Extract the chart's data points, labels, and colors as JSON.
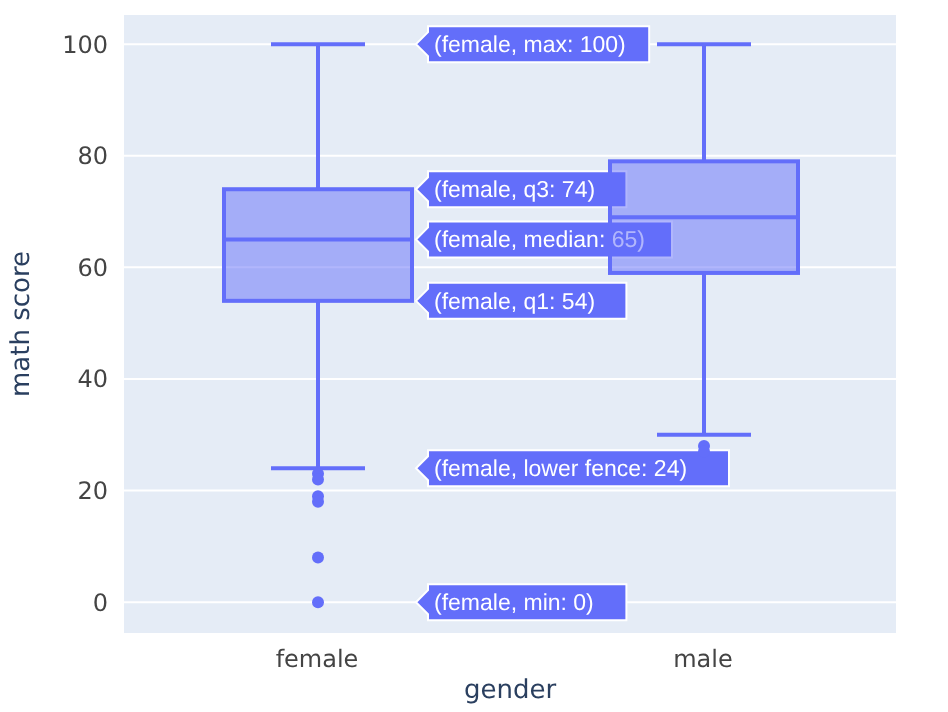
{
  "chart_data": {
    "type": "box",
    "xlabel": "gender",
    "ylabel": "math score",
    "categories": [
      "female",
      "male"
    ],
    "color": "#636efa",
    "boxes": [
      {
        "low": 24,
        "q1": 54,
        "median": 65,
        "q3": 74,
        "high": 100,
        "outliers": [
          23,
          22,
          19,
          18,
          8,
          0
        ]
      },
      {
        "low": 30,
        "q1": 59,
        "median": 69,
        "q3": 79,
        "high": 100,
        "outliers": [
          28,
          27
        ]
      }
    ],
    "ylim": [
      -5.7,
      105.4
    ],
    "yticks": [
      0,
      20,
      40,
      60,
      80,
      100
    ],
    "grid": "y",
    "legend": false,
    "annotations": [
      "(female, max: 100)",
      "(female, q3: 74)",
      "(female, median: 65)",
      "(female, q1: 54)",
      "(female, lower fence: 24)",
      "(female, min: 0)"
    ]
  }
}
